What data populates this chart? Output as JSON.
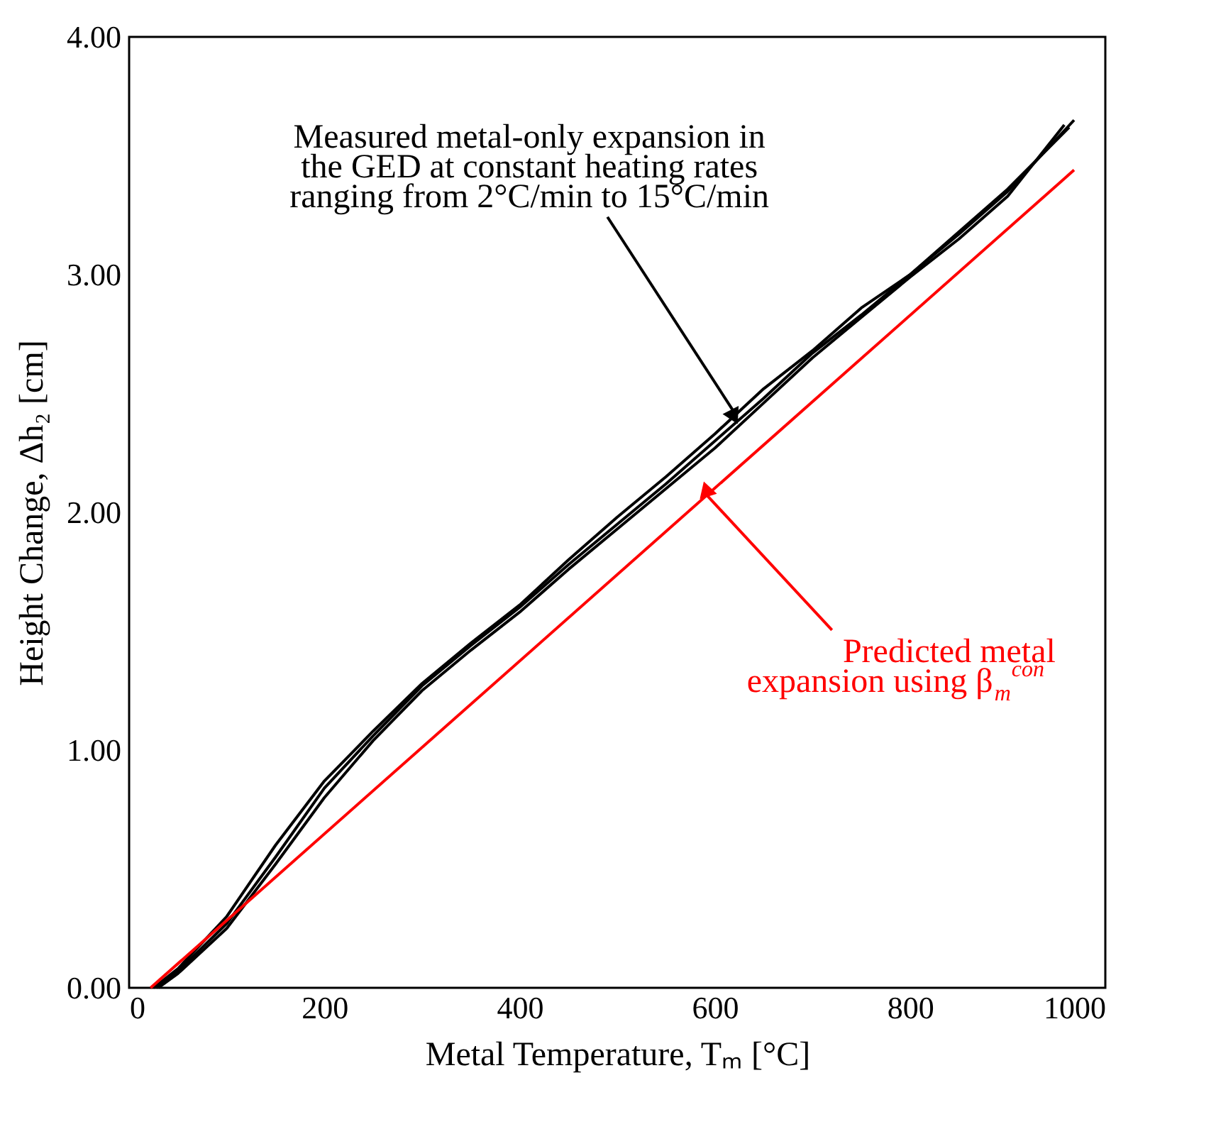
{
  "chart_data": {
    "type": "line",
    "xlabel": "Metal Temperature, Tₘ [°C]",
    "ylabel": "Height Change, Δh₂ [cm]",
    "xlim": [
      0,
      1000
    ],
    "xticks": [
      0,
      200,
      400,
      600,
      800,
      1000
    ],
    "ylim": [
      0,
      4
    ],
    "yticks": [
      {
        "value": 0,
        "label": "0.00"
      },
      {
        "value": 1,
        "label": "1.00"
      },
      {
        "value": 2,
        "label": "2.00"
      },
      {
        "value": 3,
        "label": "3.00"
      },
      {
        "value": 4,
        "label": "4.00"
      }
    ],
    "grid": false,
    "line_style": "solid",
    "marker": "none",
    "series": [
      {
        "color": "#000000",
        "x": [
          25,
          50,
          100,
          150,
          200,
          250,
          300,
          350,
          400,
          450,
          500,
          550,
          600,
          650,
          700,
          750,
          800,
          850,
          900,
          968
        ],
        "values": [
          0,
          0.08,
          0.3,
          0.6,
          0.87,
          1.08,
          1.28,
          1.45,
          1.61,
          1.8,
          1.98,
          2.15,
          2.33,
          2.52,
          2.68,
          2.86,
          3.0,
          3.17,
          3.35,
          3.65
        ]
      },
      {
        "color": "#000000",
        "x": [
          28,
          50,
          100,
          150,
          200,
          250,
          300,
          350,
          400,
          450,
          500,
          550,
          600,
          650,
          700,
          750,
          800,
          850,
          900,
          963
        ],
        "values": [
          0,
          0.07,
          0.27,
          0.55,
          0.84,
          1.06,
          1.27,
          1.44,
          1.6,
          1.78,
          1.95,
          2.12,
          2.3,
          2.48,
          2.67,
          2.83,
          3.0,
          3.18,
          3.36,
          3.62
        ]
      },
      {
        "color": "#000000",
        "x": [
          30,
          50,
          100,
          150,
          200,
          250,
          300,
          350,
          400,
          450,
          500,
          550,
          600,
          650,
          700,
          750,
          800,
          850,
          900,
          958
        ],
        "values": [
          0,
          0.06,
          0.25,
          0.52,
          0.8,
          1.04,
          1.25,
          1.42,
          1.58,
          1.76,
          1.93,
          2.1,
          2.27,
          2.46,
          2.65,
          2.82,
          2.99,
          3.15,
          3.33,
          3.63
        ]
      },
      {
        "color": "#ff0000",
        "x": [
          22,
          968
        ],
        "values": [
          0,
          3.44
        ]
      }
    ],
    "annotations": [
      {
        "text": "Measured metal-only expansion in\nthe GED at constant heating rates\nranging from 2°C/min to 15°C/min",
        "x": 620,
        "y": 2.42
      },
      {
        "text": "Predicted metal\nexpansion using β$_{m}$$^{con}$",
        "x": 590,
        "y": 2.08
      }
    ]
  }
}
